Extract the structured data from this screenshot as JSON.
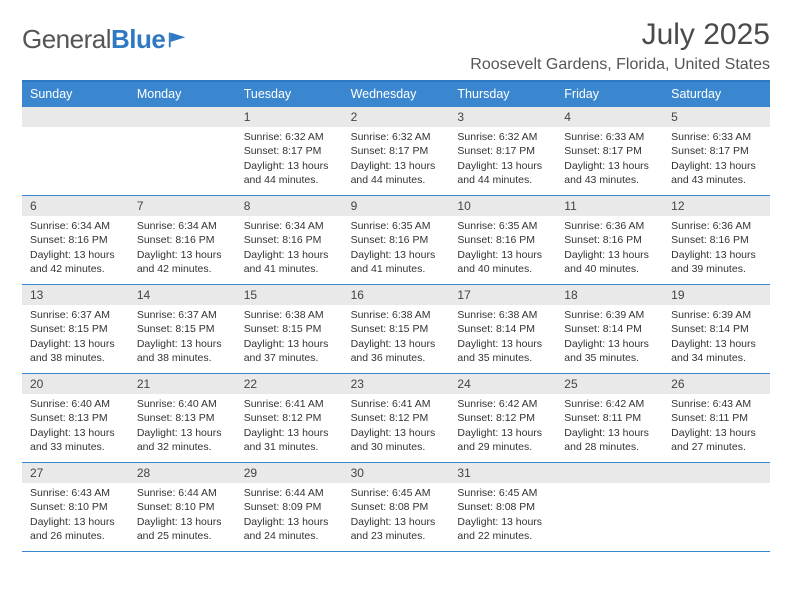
{
  "brand": {
    "name_a": "General",
    "name_b": "Blue"
  },
  "title": "July 2025",
  "location": "Roosevelt Gardens, Florida, United States",
  "colors": {
    "header_bg": "#3a87cf",
    "daynum_bg": "#e9e9e9",
    "rule": "#3a87cf",
    "accent": "#2f78c2",
    "text": "#333333",
    "title_text": "#4a4a4a"
  },
  "day_names": [
    "Sunday",
    "Monday",
    "Tuesday",
    "Wednesday",
    "Thursday",
    "Friday",
    "Saturday"
  ],
  "weeks": [
    [
      {
        "n": "",
        "sr": "",
        "ss": "",
        "dl": ""
      },
      {
        "n": "",
        "sr": "",
        "ss": "",
        "dl": ""
      },
      {
        "n": "1",
        "sr": "6:32 AM",
        "ss": "8:17 PM",
        "dl": "13 hours and 44 minutes."
      },
      {
        "n": "2",
        "sr": "6:32 AM",
        "ss": "8:17 PM",
        "dl": "13 hours and 44 minutes."
      },
      {
        "n": "3",
        "sr": "6:32 AM",
        "ss": "8:17 PM",
        "dl": "13 hours and 44 minutes."
      },
      {
        "n": "4",
        "sr": "6:33 AM",
        "ss": "8:17 PM",
        "dl": "13 hours and 43 minutes."
      },
      {
        "n": "5",
        "sr": "6:33 AM",
        "ss": "8:17 PM",
        "dl": "13 hours and 43 minutes."
      }
    ],
    [
      {
        "n": "6",
        "sr": "6:34 AM",
        "ss": "8:16 PM",
        "dl": "13 hours and 42 minutes."
      },
      {
        "n": "7",
        "sr": "6:34 AM",
        "ss": "8:16 PM",
        "dl": "13 hours and 42 minutes."
      },
      {
        "n": "8",
        "sr": "6:34 AM",
        "ss": "8:16 PM",
        "dl": "13 hours and 41 minutes."
      },
      {
        "n": "9",
        "sr": "6:35 AM",
        "ss": "8:16 PM",
        "dl": "13 hours and 41 minutes."
      },
      {
        "n": "10",
        "sr": "6:35 AM",
        "ss": "8:16 PM",
        "dl": "13 hours and 40 minutes."
      },
      {
        "n": "11",
        "sr": "6:36 AM",
        "ss": "8:16 PM",
        "dl": "13 hours and 40 minutes."
      },
      {
        "n": "12",
        "sr": "6:36 AM",
        "ss": "8:16 PM",
        "dl": "13 hours and 39 minutes."
      }
    ],
    [
      {
        "n": "13",
        "sr": "6:37 AM",
        "ss": "8:15 PM",
        "dl": "13 hours and 38 minutes."
      },
      {
        "n": "14",
        "sr": "6:37 AM",
        "ss": "8:15 PM",
        "dl": "13 hours and 38 minutes."
      },
      {
        "n": "15",
        "sr": "6:38 AM",
        "ss": "8:15 PM",
        "dl": "13 hours and 37 minutes."
      },
      {
        "n": "16",
        "sr": "6:38 AM",
        "ss": "8:15 PM",
        "dl": "13 hours and 36 minutes."
      },
      {
        "n": "17",
        "sr": "6:38 AM",
        "ss": "8:14 PM",
        "dl": "13 hours and 35 minutes."
      },
      {
        "n": "18",
        "sr": "6:39 AM",
        "ss": "8:14 PM",
        "dl": "13 hours and 35 minutes."
      },
      {
        "n": "19",
        "sr": "6:39 AM",
        "ss": "8:14 PM",
        "dl": "13 hours and 34 minutes."
      }
    ],
    [
      {
        "n": "20",
        "sr": "6:40 AM",
        "ss": "8:13 PM",
        "dl": "13 hours and 33 minutes."
      },
      {
        "n": "21",
        "sr": "6:40 AM",
        "ss": "8:13 PM",
        "dl": "13 hours and 32 minutes."
      },
      {
        "n": "22",
        "sr": "6:41 AM",
        "ss": "8:12 PM",
        "dl": "13 hours and 31 minutes."
      },
      {
        "n": "23",
        "sr": "6:41 AM",
        "ss": "8:12 PM",
        "dl": "13 hours and 30 minutes."
      },
      {
        "n": "24",
        "sr": "6:42 AM",
        "ss": "8:12 PM",
        "dl": "13 hours and 29 minutes."
      },
      {
        "n": "25",
        "sr": "6:42 AM",
        "ss": "8:11 PM",
        "dl": "13 hours and 28 minutes."
      },
      {
        "n": "26",
        "sr": "6:43 AM",
        "ss": "8:11 PM",
        "dl": "13 hours and 27 minutes."
      }
    ],
    [
      {
        "n": "27",
        "sr": "6:43 AM",
        "ss": "8:10 PM",
        "dl": "13 hours and 26 minutes."
      },
      {
        "n": "28",
        "sr": "6:44 AM",
        "ss": "8:10 PM",
        "dl": "13 hours and 25 minutes."
      },
      {
        "n": "29",
        "sr": "6:44 AM",
        "ss": "8:09 PM",
        "dl": "13 hours and 24 minutes."
      },
      {
        "n": "30",
        "sr": "6:45 AM",
        "ss": "8:08 PM",
        "dl": "13 hours and 23 minutes."
      },
      {
        "n": "31",
        "sr": "6:45 AM",
        "ss": "8:08 PM",
        "dl": "13 hours and 22 minutes."
      },
      {
        "n": "",
        "sr": "",
        "ss": "",
        "dl": ""
      },
      {
        "n": "",
        "sr": "",
        "ss": "",
        "dl": ""
      }
    ]
  ],
  "labels": {
    "sunrise": "Sunrise:",
    "sunset": "Sunset:",
    "daylight": "Daylight:"
  }
}
